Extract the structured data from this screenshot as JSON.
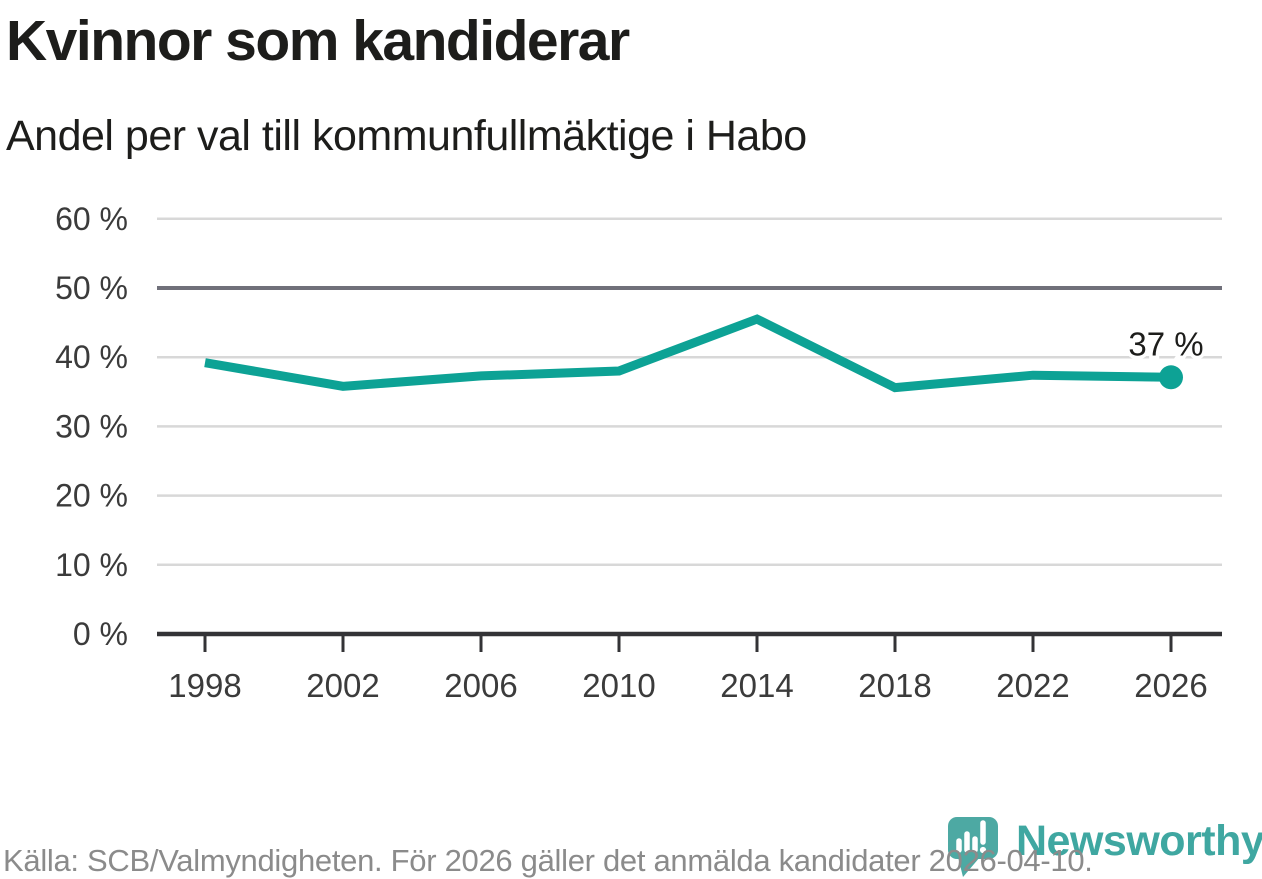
{
  "title": "Kvinnor som kandiderar",
  "subtitle": "Andel per val till kommunfullmäktige i Habo",
  "footer": {
    "text": "Källa: SCB/Valmyndigheten. För 2026 gäller det anmälda kandidater 2026-04-10."
  },
  "branding": {
    "name": "Newsworthy",
    "logo_color": "#4da9a3",
    "wordmark_color": "#3fa7a1"
  },
  "chart_data": {
    "type": "line",
    "title": "Kvinnor som kandiderar",
    "subtitle": "Andel per val till kommunfullmäktige i Habo",
    "categories": [
      "1998",
      "2002",
      "2006",
      "2010",
      "2014",
      "2018",
      "2022",
      "2026"
    ],
    "values": [
      39.2,
      35.8,
      37.3,
      38.0,
      45.5,
      35.6,
      37.4,
      37.1
    ],
    "end_label": "37 %",
    "xlabel": "",
    "ylabel": "",
    "ylim": [
      0,
      60
    ],
    "ytick_values": [
      0,
      10,
      20,
      30,
      40,
      50,
      60
    ],
    "ytick_labels": [
      "0 %",
      "10 %",
      "20 %",
      "30 %",
      "40 %",
      "50 %",
      "60 %"
    ],
    "grid": true,
    "emphasized_gridline": 50,
    "legend": "none",
    "line_color": "#0da295",
    "gridline_color": "#d8d8d8",
    "emphasized_gridline_color": "#70707a",
    "axis_color": "#333336",
    "tick_label_color": "#3b3b3b",
    "end_label_color": "#1d1d1b"
  }
}
